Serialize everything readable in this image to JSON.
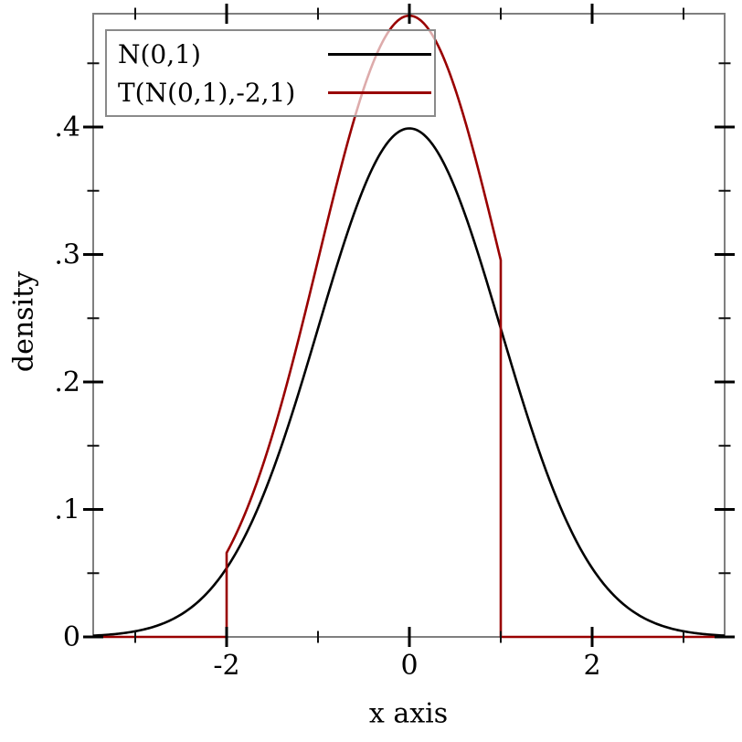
{
  "figure": {
    "xlabel": "x axis",
    "ylabel": "density"
  },
  "chart_data": {
    "type": "line",
    "title": "",
    "xlabel": "x axis",
    "ylabel": "density",
    "xlim": [
      -3.46,
      3.45
    ],
    "ylim": [
      0,
      0.4889
    ],
    "grid": false,
    "legend_position": "top-left",
    "x_major_ticks": [
      -2,
      0,
      2
    ],
    "x_major_tick_labels": [
      "-2",
      "0",
      "2"
    ],
    "x_minor_ticks": [
      -3,
      -1,
      1,
      3
    ],
    "y_major_ticks": [
      0,
      0.1,
      0.2,
      0.3,
      0.4
    ],
    "y_major_tick_labels": [
      "0",
      ".1",
      ".2",
      ".3",
      ".4"
    ],
    "y_minor_ticks": [
      0.05,
      0.15,
      0.25,
      0.35,
      0.45
    ],
    "series": [
      {
        "name": "N(0,1)",
        "color": "#000000",
        "function": "normal_pdf",
        "mean": 0,
        "sd": 1,
        "domain": [
          -3.46,
          3.45
        ],
        "key_points": [
          [
            -3.5,
            0.0009
          ],
          [
            -3,
            0.0044
          ],
          [
            -2.5,
            0.0175
          ],
          [
            -2,
            0.054
          ],
          [
            -1.5,
            0.1295
          ],
          [
            -1,
            0.242
          ],
          [
            -0.5,
            0.3521
          ],
          [
            0,
            0.3989
          ],
          [
            0.5,
            0.3521
          ],
          [
            1,
            0.242
          ],
          [
            1.5,
            0.1295
          ],
          [
            2,
            0.054
          ],
          [
            2.5,
            0.0175
          ],
          [
            3,
            0.0044
          ],
          [
            3.45,
            0.001
          ]
        ]
      },
      {
        "name": "T(N(0,1),-2,1)",
        "color": "#990000",
        "function": "truncated_normal_pdf",
        "mean": 0,
        "sd": 1,
        "truncate": [
          -2,
          1
        ],
        "normalizer": 0.818595,
        "domain": [
          -3.46,
          3.45
        ],
        "key_points": [
          [
            -2,
            0
          ],
          [
            -2,
            0.066
          ],
          [
            -1.5,
            0.1582
          ],
          [
            -1,
            0.2956
          ],
          [
            -0.5,
            0.4301
          ],
          [
            0,
            0.4873
          ],
          [
            0.5,
            0.4301
          ],
          [
            1,
            0.2956
          ],
          [
            1,
            0
          ]
        ]
      }
    ]
  },
  "style": {
    "background": "#ffffff",
    "border_color": "#7f7f7f",
    "major_tick_color": "#000000",
    "minor_tick_color": "#111111",
    "text_color": "#000000",
    "legend_bg": "rgba(255,255,255,0.67)",
    "legend_border": "#8a8a8a"
  }
}
